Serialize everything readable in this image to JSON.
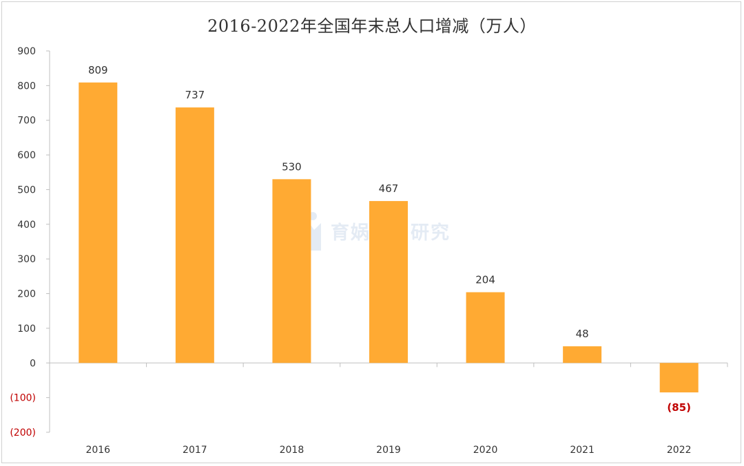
{
  "title": "2016-2022年全国年末总人口增减（万人）",
  "watermark": "育娲人口研究",
  "chart_data": {
    "type": "bar",
    "title": "2016-2022年全国年末总人口增减（万人）",
    "categories": [
      "2016",
      "2017",
      "2018",
      "2019",
      "2020",
      "2021",
      "2022"
    ],
    "values": [
      809,
      737,
      530,
      467,
      204,
      48,
      -85
    ],
    "data_labels": [
      "809",
      "737",
      "530",
      "467",
      "204",
      "48",
      "(85)"
    ],
    "ylim": [
      -200,
      900
    ],
    "yticks": [
      900,
      800,
      700,
      600,
      500,
      400,
      300,
      200,
      100,
      0,
      -100,
      -200
    ],
    "ytick_labels": [
      "900",
      "800",
      "700",
      "600",
      "500",
      "400",
      "300",
      "200",
      "100",
      "0",
      "(100)",
      "(200)"
    ],
    "xlabel": "",
    "ylabel": "",
    "grid": false,
    "legend": "none",
    "colors": {
      "bar": "#FFAA33",
      "negative_label": "#C00000",
      "text": "#333333",
      "axis": "#bfbfbf"
    }
  }
}
